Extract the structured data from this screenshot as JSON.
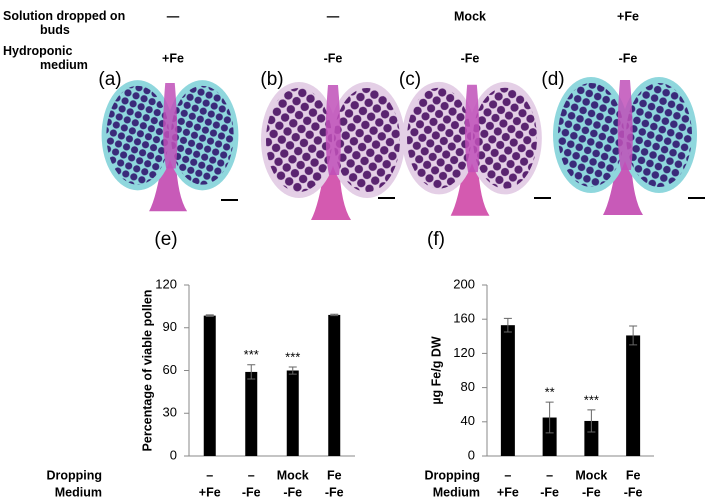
{
  "header": {
    "row_labels": [
      "Solution dropped on buds",
      "Hydroponic medium"
    ],
    "dropped": [
      "—",
      "—",
      "Mock",
      "+Fe"
    ],
    "medium": [
      "+Fe",
      "-Fe",
      "-Fe",
      "-Fe"
    ],
    "panels": [
      "(a)",
      "(b)",
      "(c)",
      "(d)"
    ]
  },
  "chart_data": [
    {
      "type": "bar",
      "panel": "(e)",
      "ylabel": "Percentage of viable pollen",
      "category_rows": [
        {
          "name": "Dropping",
          "labels": [
            "–",
            "–",
            "Mock",
            "Fe"
          ]
        },
        {
          "name": "Medium",
          "labels": [
            "+Fe",
            "-Fe",
            "-Fe",
            "-Fe"
          ]
        }
      ],
      "values": [
        98.5,
        59,
        60,
        99
      ],
      "errors": [
        0.5,
        5,
        2.5,
        0.5
      ],
      "significance": [
        null,
        "***",
        "***",
        null
      ],
      "color": "#000000",
      "ylim": [
        0,
        120
      ],
      "yticks": [
        0,
        30,
        60,
        90,
        120
      ]
    },
    {
      "type": "bar",
      "panel": "(f)",
      "ylabel": "µg Fe/g DW",
      "category_rows": [
        {
          "name": "Dropping",
          "labels": [
            "–",
            "–",
            "Mock",
            "Fe"
          ]
        },
        {
          "name": "Medium",
          "labels": [
            "+Fe",
            "-Fe",
            "-Fe",
            "-Fe"
          ]
        }
      ],
      "values": [
        153,
        45,
        41,
        141
      ],
      "errors": [
        8,
        18,
        13,
        11
      ],
      "significance": [
        null,
        "**",
        "***",
        null
      ],
      "color": "#000000",
      "ylim": [
        0,
        200
      ],
      "yticks": [
        0,
        40,
        80,
        120,
        160,
        200
      ]
    }
  ]
}
